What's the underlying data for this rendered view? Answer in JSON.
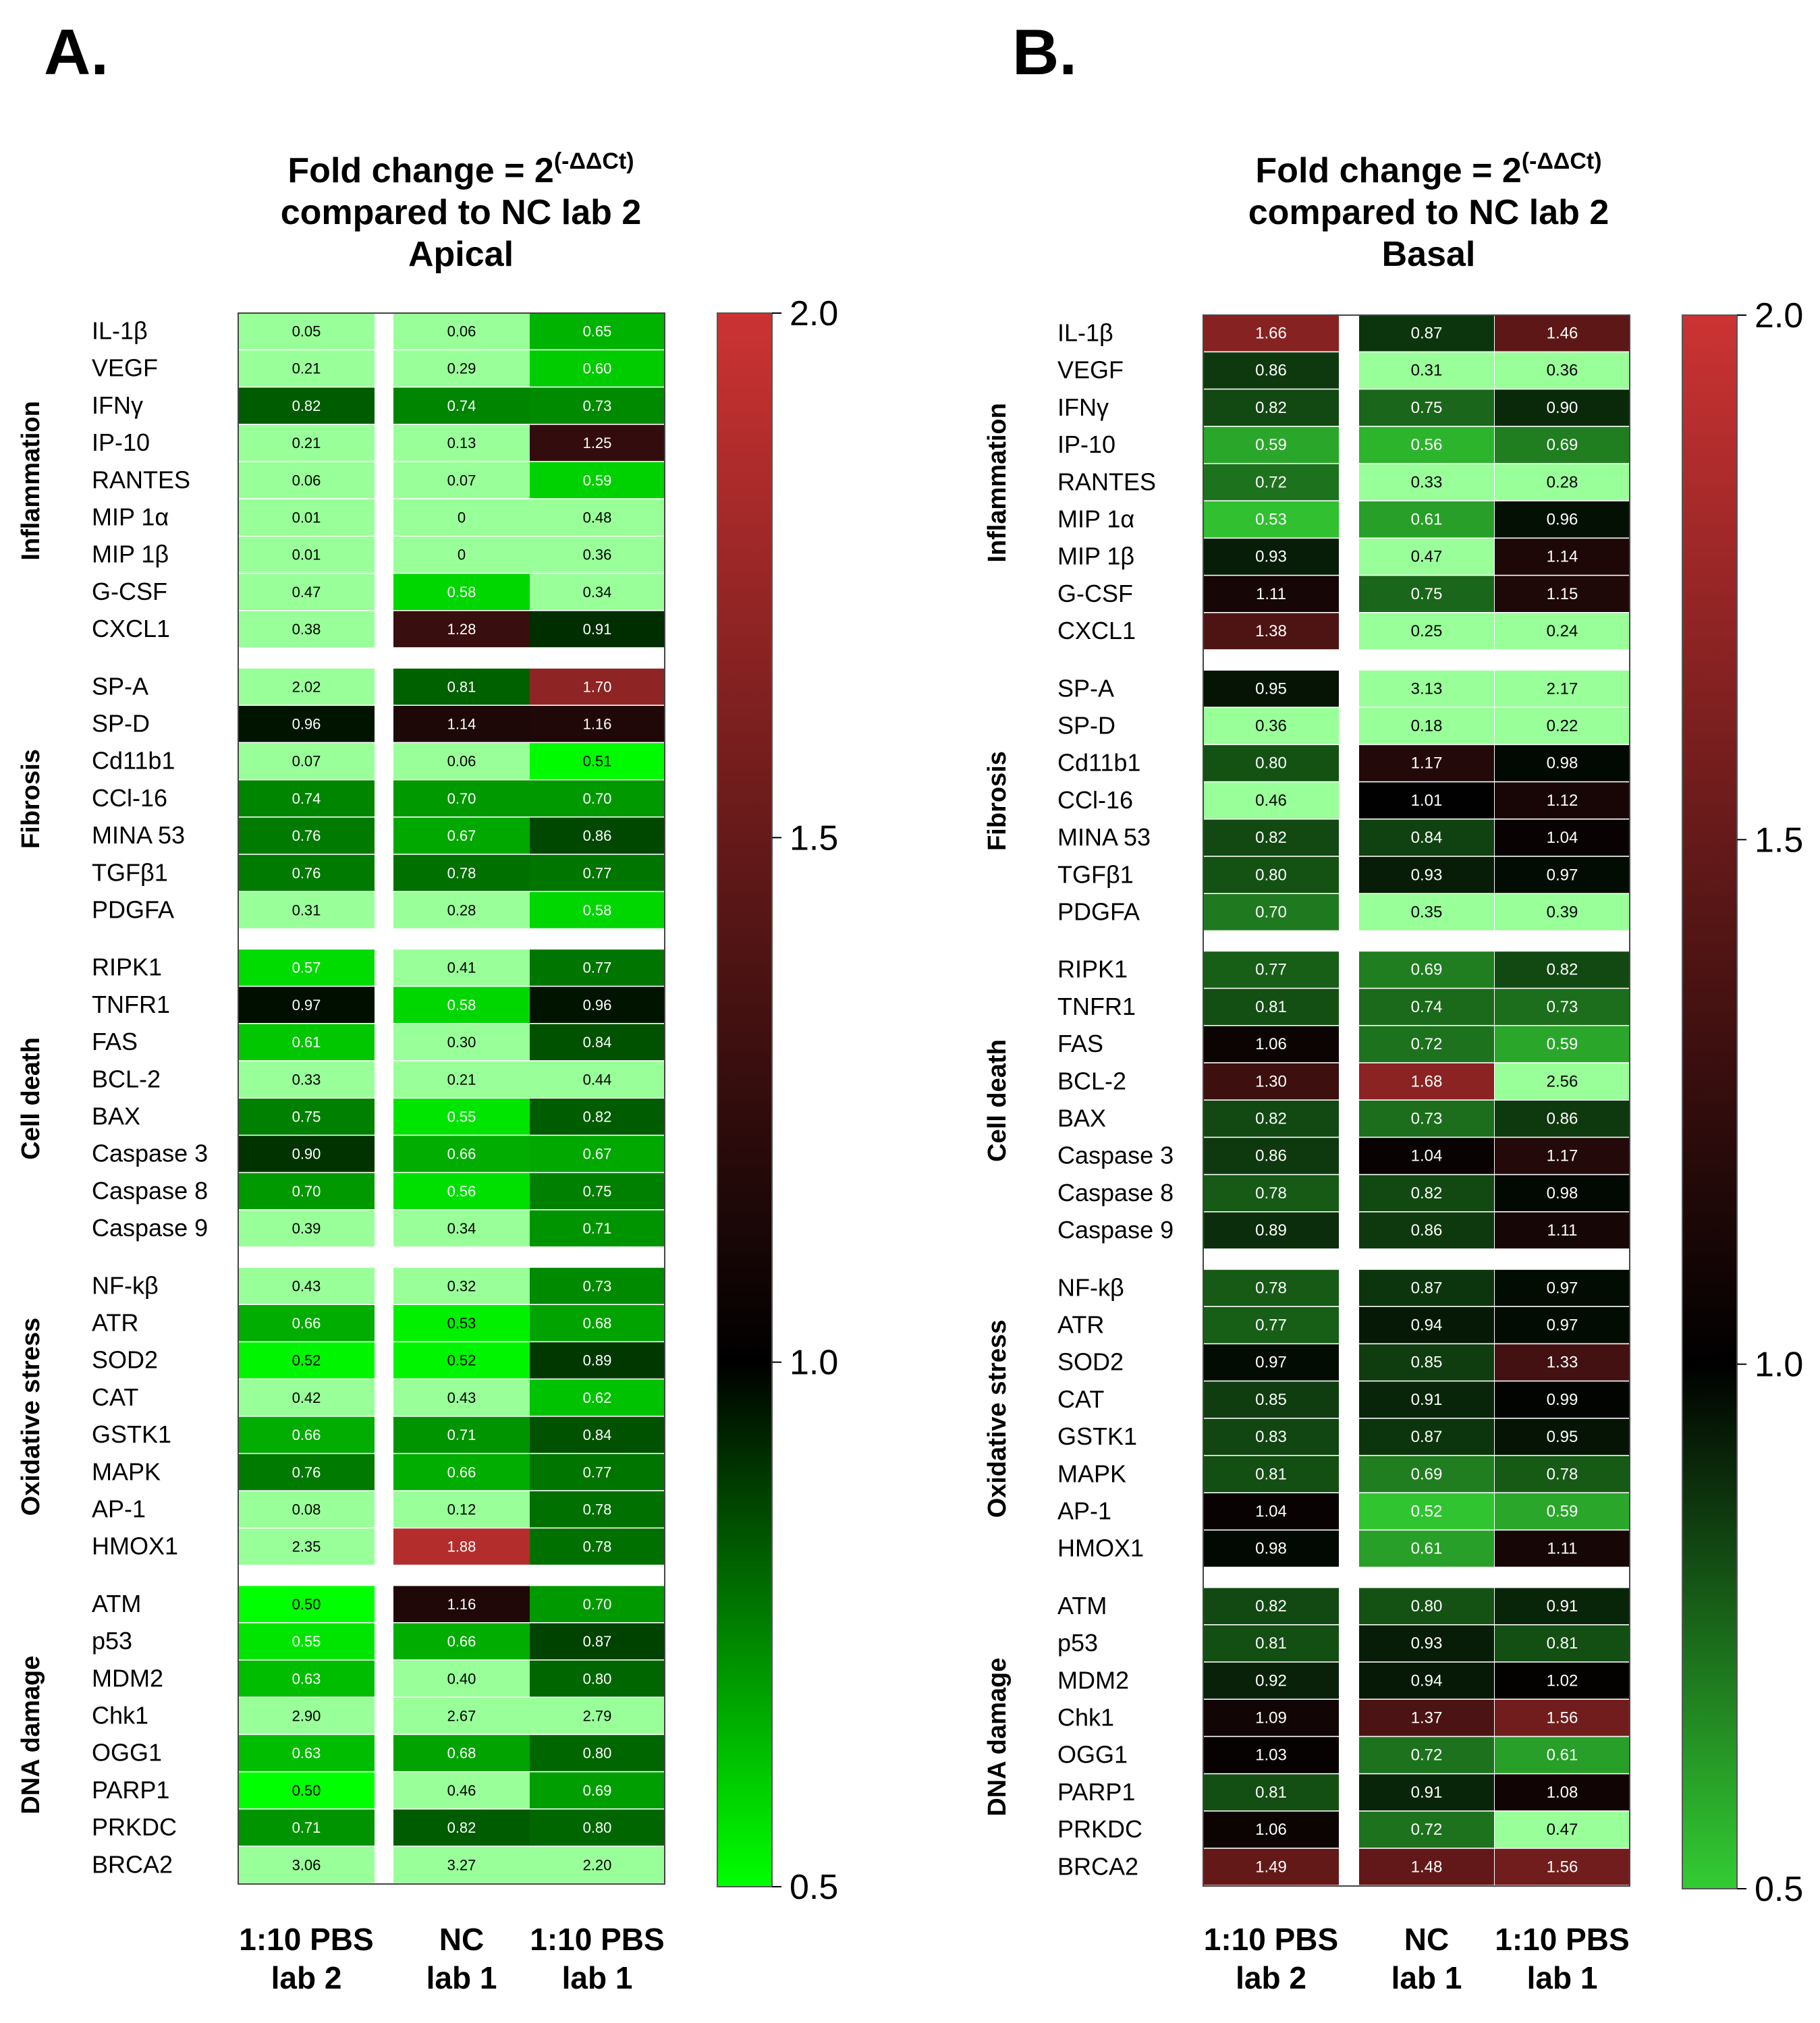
{
  "chart_data": [
    {
      "type": "heatmap",
      "panel_label": "A.",
      "title_line1_prefix": "Fold change = 2",
      "title_line1_superscript": "(-ΔΔCt)",
      "title_line2": "compared to NC lab 2",
      "title_line3": "Apical",
      "columns": [
        {
          "line1": "1:10 PBS",
          "line2": "lab 2"
        },
        {
          "line1": "NC",
          "line2": "lab 1"
        },
        {
          "line1": "1:10 PBS",
          "line2": "lab 1"
        }
      ],
      "colorbar": {
        "min": 0.5,
        "max": 2.0,
        "ticks": [
          "2.0",
          "1.5",
          "1.0",
          "0.5"
        ]
      },
      "groups": [
        {
          "name": "Inflammation",
          "rows": [
            {
              "gene": "IL-1β",
              "values": [
                "0.05",
                "0.06",
                "0.65"
              ]
            },
            {
              "gene": "VEGF",
              "values": [
                "0.21",
                "0.29",
                "0.60"
              ]
            },
            {
              "gene": "IFNγ",
              "values": [
                "0.82",
                "0.74",
                "0.73"
              ]
            },
            {
              "gene": "IP-10",
              "values": [
                "0.21",
                "0.13",
                "1.25"
              ]
            },
            {
              "gene": "RANTES",
              "values": [
                "0.06",
                "0.07",
                "0.59"
              ]
            },
            {
              "gene": "MIP 1α",
              "values": [
                "0.01",
                "0",
                "0.48"
              ]
            },
            {
              "gene": "MIP 1β",
              "values": [
                "0.01",
                "0",
                "0.36"
              ]
            },
            {
              "gene": "G-CSF",
              "values": [
                "0.47",
                "0.58",
                "0.34"
              ]
            },
            {
              "gene": "CXCL1",
              "values": [
                "0.38",
                "1.28",
                "0.91"
              ]
            }
          ]
        },
        {
          "name": "Fibrosis",
          "rows": [
            {
              "gene": "SP-A",
              "values": [
                "2.02",
                "0.81",
                "1.70"
              ]
            },
            {
              "gene": "SP-D",
              "values": [
                "0.96",
                "1.14",
                "1.16"
              ]
            },
            {
              "gene": "Cd11b1",
              "values": [
                "0.07",
                "0.06",
                "0.51"
              ]
            },
            {
              "gene": "CCl-16",
              "values": [
                "0.74",
                "0.70",
                "0.70"
              ]
            },
            {
              "gene": "MINA 53",
              "values": [
                "0.76",
                "0.67",
                "0.86"
              ]
            },
            {
              "gene": "TGFβ1",
              "values": [
                "0.76",
                "0.78",
                "0.77"
              ]
            },
            {
              "gene": "PDGFA",
              "values": [
                "0.31",
                "0.28",
                "0.58"
              ]
            }
          ]
        },
        {
          "name": "Cell death",
          "rows": [
            {
              "gene": "RIPK1",
              "values": [
                "0.57",
                "0.41",
                "0.77"
              ]
            },
            {
              "gene": "TNFR1",
              "values": [
                "0.97",
                "0.58",
                "0.96"
              ]
            },
            {
              "gene": "FAS",
              "values": [
                "0.61",
                "0.30",
                "0.84"
              ]
            },
            {
              "gene": "BCL-2",
              "values": [
                "0.33",
                "0.21",
                "0.44"
              ]
            },
            {
              "gene": "BAX",
              "values": [
                "0.75",
                "0.55",
                "0.82"
              ]
            },
            {
              "gene": "Caspase 3",
              "values": [
                "0.90",
                "0.66",
                "0.67"
              ]
            },
            {
              "gene": "Caspase 8",
              "values": [
                "0.70",
                "0.56",
                "0.75"
              ]
            },
            {
              "gene": "Caspase 9",
              "values": [
                "0.39",
                "0.34",
                "0.71"
              ]
            }
          ]
        },
        {
          "name": "Oxidative stress",
          "rows": [
            {
              "gene": "NF-kβ",
              "values": [
                "0.43",
                "0.32",
                "0.73"
              ]
            },
            {
              "gene": "ATR",
              "values": [
                "0.66",
                "0.53",
                "0.68"
              ]
            },
            {
              "gene": "SOD2",
              "values": [
                "0.52",
                "0.52",
                "0.89"
              ]
            },
            {
              "gene": "CAT",
              "values": [
                "0.42",
                "0.43",
                "0.62"
              ]
            },
            {
              "gene": "GSTK1",
              "values": [
                "0.66",
                "0.71",
                "0.84"
              ]
            },
            {
              "gene": "MAPK",
              "values": [
                "0.76",
                "0.66",
                "0.77"
              ]
            },
            {
              "gene": "AP-1",
              "values": [
                "0.08",
                "0.12",
                "0.78"
              ]
            },
            {
              "gene": "HMOX1",
              "values": [
                "2.35",
                "1.88",
                "0.78"
              ]
            }
          ]
        },
        {
          "name": "DNA damage",
          "rows": [
            {
              "gene": "ATM",
              "values": [
                "0.50",
                "1.16",
                "0.70"
              ]
            },
            {
              "gene": "p53",
              "values": [
                "0.55",
                "0.66",
                "0.87"
              ]
            },
            {
              "gene": "MDM2",
              "values": [
                "0.63",
                "0.40",
                "0.80"
              ]
            },
            {
              "gene": "Chk1",
              "values": [
                "2.90",
                "2.67",
                "2.79"
              ]
            },
            {
              "gene": "OGG1",
              "values": [
                "0.63",
                "0.68",
                "0.80"
              ]
            },
            {
              "gene": "PARP1",
              "values": [
                "0.50",
                "0.46",
                "0.69"
              ]
            },
            {
              "gene": "PRKDC",
              "values": [
                "0.71",
                "0.82",
                "0.80"
              ]
            },
            {
              "gene": "BRCA2",
              "values": [
                "3.06",
                "3.27",
                "2.20"
              ]
            }
          ]
        }
      ]
    },
    {
      "type": "heatmap",
      "panel_label": "B.",
      "title_line1_prefix": "Fold change = 2",
      "title_line1_superscript": "(-ΔΔCt)",
      "title_line2": "compared to NC lab 2",
      "title_line3": "Basal",
      "columns": [
        {
          "line1": "1:10 PBS",
          "line2": "lab 2"
        },
        {
          "line1": "NC",
          "line2": "lab 1"
        },
        {
          "line1": "1:10 PBS",
          "line2": "lab 1"
        }
      ],
      "colorbar": {
        "min": 0.5,
        "max": 2.0,
        "ticks": [
          "2.0",
          "1.5",
          "1.0",
          "0.5"
        ]
      },
      "groups": [
        {
          "name": "Inflammation",
          "rows": [
            {
              "gene": "IL-1β",
              "values": [
                "1.66",
                "0.87",
                "1.46"
              ]
            },
            {
              "gene": "VEGF",
              "values": [
                "0.86",
                "0.31",
                "0.36"
              ]
            },
            {
              "gene": "IFNγ",
              "values": [
                "0.82",
                "0.75",
                "0.90"
              ]
            },
            {
              "gene": "IP-10",
              "values": [
                "0.59",
                "0.56",
                "0.69"
              ]
            },
            {
              "gene": "RANTES",
              "values": [
                "0.72",
                "0.33",
                "0.28"
              ]
            },
            {
              "gene": "MIP 1α",
              "values": [
                "0.53",
                "0.61",
                "0.96"
              ]
            },
            {
              "gene": "MIP 1β",
              "values": [
                "0.93",
                "0.47",
                "1.14"
              ]
            },
            {
              "gene": "G-CSF",
              "values": [
                "1.11",
                "0.75",
                "1.15"
              ]
            },
            {
              "gene": "CXCL1",
              "values": [
                "1.38",
                "0.25",
                "0.24"
              ]
            }
          ]
        },
        {
          "name": "Fibrosis",
          "rows": [
            {
              "gene": "SP-A",
              "values": [
                "0.95",
                "3.13",
                "2.17"
              ]
            },
            {
              "gene": "SP-D",
              "values": [
                "0.36",
                "0.18",
                "0.22"
              ]
            },
            {
              "gene": "Cd11b1",
              "values": [
                "0.80",
                "1.17",
                "0.98"
              ]
            },
            {
              "gene": "CCl-16",
              "values": [
                "0.46",
                "1.01",
                "1.12"
              ]
            },
            {
              "gene": "MINA 53",
              "values": [
                "0.82",
                "0.84",
                "1.04"
              ]
            },
            {
              "gene": "TGFβ1",
              "values": [
                "0.80",
                "0.93",
                "0.97"
              ]
            },
            {
              "gene": "PDGFA",
              "values": [
                "0.70",
                "0.35",
                "0.39"
              ]
            }
          ]
        },
        {
          "name": "Cell death",
          "rows": [
            {
              "gene": "RIPK1",
              "values": [
                "0.77",
                "0.69",
                "0.82"
              ]
            },
            {
              "gene": "TNFR1",
              "values": [
                "0.81",
                "0.74",
                "0.73"
              ]
            },
            {
              "gene": "FAS",
              "values": [
                "1.06",
                "0.72",
                "0.59"
              ]
            },
            {
              "gene": "BCL-2",
              "values": [
                "1.30",
                "1.68",
                "2.56"
              ]
            },
            {
              "gene": "BAX",
              "values": [
                "0.82",
                "0.73",
                "0.86"
              ]
            },
            {
              "gene": "Caspase 3",
              "values": [
                "0.86",
                "1.04",
                "1.17"
              ]
            },
            {
              "gene": "Caspase 8",
              "values": [
                "0.78",
                "0.82",
                "0.98"
              ]
            },
            {
              "gene": "Caspase 9",
              "values": [
                "0.89",
                "0.86",
                "1.11"
              ]
            }
          ]
        },
        {
          "name": "Oxidative stress",
          "rows": [
            {
              "gene": "NF-kβ",
              "values": [
                "0.78",
                "0.87",
                "0.97"
              ]
            },
            {
              "gene": "ATR",
              "values": [
                "0.77",
                "0.94",
                "0.97"
              ]
            },
            {
              "gene": "SOD2",
              "values": [
                "0.97",
                "0.85",
                "1.33"
              ]
            },
            {
              "gene": "CAT",
              "values": [
                "0.85",
                "0.91",
                "0.99"
              ]
            },
            {
              "gene": "GSTK1",
              "values": [
                "0.83",
                "0.87",
                "0.95"
              ]
            },
            {
              "gene": "MAPK",
              "values": [
                "0.81",
                "0.69",
                "0.78"
              ]
            },
            {
              "gene": "AP-1",
              "values": [
                "1.04",
                "0.52",
                "0.59"
              ]
            },
            {
              "gene": "HMOX1",
              "values": [
                "0.98",
                "0.61",
                "1.11"
              ]
            }
          ]
        },
        {
          "name": "DNA damage",
          "rows": [
            {
              "gene": "ATM",
              "values": [
                "0.82",
                "0.80",
                "0.91"
              ]
            },
            {
              "gene": "p53",
              "values": [
                "0.81",
                "0.93",
                "0.81"
              ]
            },
            {
              "gene": "MDM2",
              "values": [
                "0.92",
                "0.94",
                "1.02"
              ]
            },
            {
              "gene": "Chk1",
              "values": [
                "1.09",
                "1.37",
                "1.56"
              ]
            },
            {
              "gene": "OGG1",
              "values": [
                "1.03",
                "0.72",
                "0.61"
              ]
            },
            {
              "gene": "PARP1",
              "values": [
                "0.81",
                "0.91",
                "1.08"
              ]
            },
            {
              "gene": "PRKDC",
              "values": [
                "1.06",
                "0.72",
                "0.47"
              ]
            },
            {
              "gene": "BRCA2",
              "values": [
                "1.49",
                "1.48",
                "1.56"
              ]
            }
          ]
        }
      ]
    }
  ]
}
